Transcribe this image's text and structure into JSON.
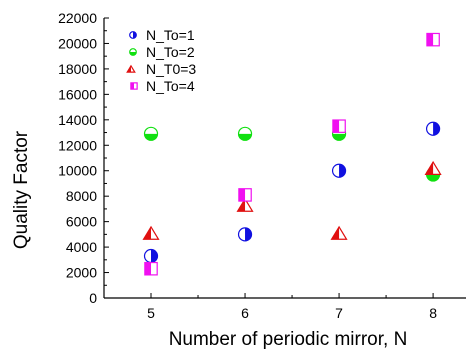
{
  "chart_data": {
    "type": "scatter",
    "title": "",
    "xlabel": "Number of periodic mirror, N",
    "ylabel": "Quality Factor",
    "xlim": [
      4.5,
      8.35
    ],
    "ylim": [
      0,
      22000
    ],
    "xticks": [
      5,
      6,
      7,
      8
    ],
    "yticks": [
      0,
      2000,
      4000,
      6000,
      8000,
      10000,
      12000,
      14000,
      16000,
      18000,
      20000,
      22000
    ],
    "grid": false,
    "legend_position": "top-left",
    "series": [
      {
        "name": "N_To=1",
        "marker": "circle-half-right",
        "color": "#1010e0",
        "points": [
          {
            "x": 5,
            "y": 3300
          },
          {
            "x": 6,
            "y": 5000
          },
          {
            "x": 7,
            "y": 10000
          },
          {
            "x": 8,
            "y": 13300
          }
        ]
      },
      {
        "name": "N_To=2",
        "marker": "circle-half-bottom",
        "color": "#10e010",
        "points": [
          {
            "x": 5,
            "y": 12900
          },
          {
            "x": 6,
            "y": 12900
          },
          {
            "x": 7,
            "y": 12900
          },
          {
            "x": 8,
            "y": 9700
          }
        ]
      },
      {
        "name": "N_T0=3",
        "marker": "triangle-half-left",
        "color": "#e01010",
        "points": [
          {
            "x": 5,
            "y": 5100
          },
          {
            "x": 6,
            "y": 7300
          },
          {
            "x": 7,
            "y": 5100
          },
          {
            "x": 8,
            "y": 10200
          }
        ]
      },
      {
        "name": "N_To=4",
        "marker": "square-half-left",
        "color": "#f010f0",
        "points": [
          {
            "x": 5,
            "y": 2300
          },
          {
            "x": 6,
            "y": 8100
          },
          {
            "x": 7,
            "y": 13500
          },
          {
            "x": 8,
            "y": 20300
          }
        ]
      }
    ]
  }
}
